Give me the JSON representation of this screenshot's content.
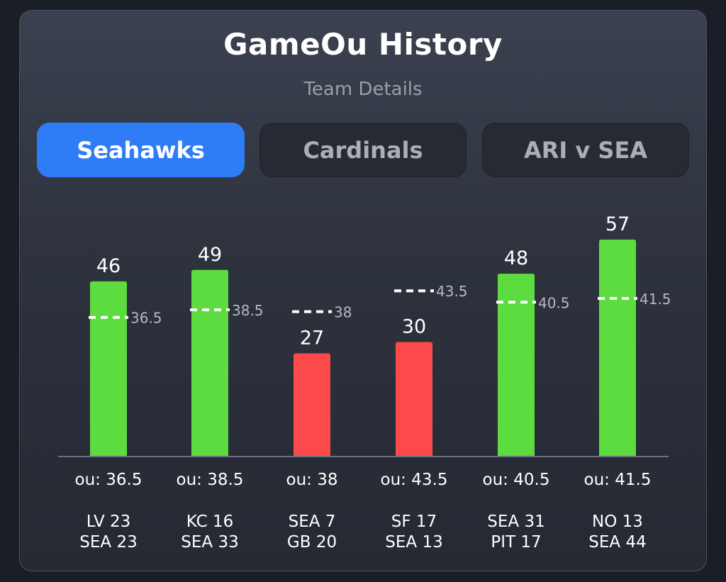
{
  "header": {
    "title": "GameOu History",
    "subtitle": "Team Details"
  },
  "tabs": [
    {
      "label": "Seahawks",
      "active": true
    },
    {
      "label": "Cardinals",
      "active": false
    },
    {
      "label": "ARI v SEA",
      "active": false
    }
  ],
  "colors": {
    "over": "#5ddc3f",
    "under": "#fc4a4a",
    "accent": "#2e7df6",
    "line": "#ffffff"
  },
  "chart_data": {
    "type": "bar",
    "title": "GameOu History",
    "categories": [
      "LV 23 / SEA 23",
      "KC 16 / SEA 33",
      "SEA 7 / GB 20",
      "SF 17 / SEA 13",
      "SEA 31 / PIT 17",
      "NO 13 / SEA 44"
    ],
    "values": [
      46,
      49,
      27,
      30,
      48,
      57
    ],
    "ou_lines": [
      36.5,
      38.5,
      38,
      43.5,
      40.5,
      41.5
    ],
    "ou_labels": [
      "ou: 36.5",
      "ou: 38.5",
      "ou: 38",
      "ou: 43.5",
      "ou: 40.5",
      "ou: 41.5"
    ],
    "games": [
      {
        "away": "LV 23",
        "home": "SEA 23"
      },
      {
        "away": "KC 16",
        "home": "SEA 33"
      },
      {
        "away": "SEA 7",
        "home": "GB 20"
      },
      {
        "away": "SF 17",
        "home": "SEA 13"
      },
      {
        "away": "SEA 31",
        "home": "PIT 17"
      },
      {
        "away": "NO 13",
        "home": "SEA 44"
      }
    ],
    "ylim": [
      0,
      60
    ],
    "xlabel": "",
    "ylabel": "",
    "grid": false
  }
}
